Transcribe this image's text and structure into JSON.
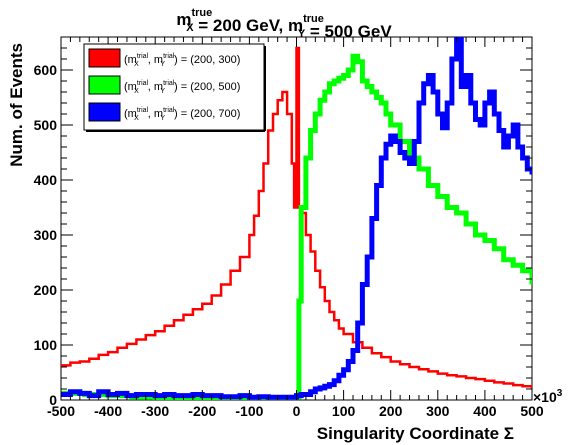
{
  "chart_data": {
    "type": "line",
    "title": {
      "parts": [
        {
          "text": "m",
          "sup": "true",
          "sub": "X"
        },
        {
          "text": " = 200 GeV, "
        },
        {
          "text": "m",
          "sup": "true",
          "sub": "Y"
        },
        {
          "text": " = 500 GeV"
        }
      ]
    },
    "xlabel": "Singularity Coordinate Σ",
    "ylabel": "Num. of Events",
    "x_multiplier_label": "×10",
    "x_multiplier_exp": "3",
    "xlim": [
      -500,
      500
    ],
    "ylim": [
      0,
      660
    ],
    "xticks": [
      -500,
      -400,
      -300,
      -200,
      -100,
      0,
      100,
      200,
      300,
      400,
      500
    ],
    "xtick_labels": [
      "-500",
      "-400",
      "-300",
      "-200",
      "-100",
      "0",
      "100",
      "200",
      "300",
      "400",
      "500"
    ],
    "yticks": [
      0,
      100,
      200,
      300,
      400,
      500,
      600
    ],
    "ytick_labels": [
      "0",
      "100",
      "200",
      "300",
      "400",
      "500",
      "600"
    ],
    "legend_position": "top-left",
    "series": [
      {
        "name": "(m_X^trial, m_Y^trial) = (200, 300)",
        "legend_prefix": "(m",
        "legend_sub1": "X",
        "legend_sup1": "trial",
        "legend_sub2": "Y",
        "legend_sup2": "trial",
        "legend_values": "= (200, 300)",
        "color": "#ff0000",
        "style": "line",
        "x": [
          -500,
          -480,
          -460,
          -440,
          -420,
          -400,
          -380,
          -360,
          -340,
          -320,
          -300,
          -280,
          -260,
          -240,
          -220,
          -200,
          -180,
          -160,
          -140,
          -120,
          -100,
          -90,
          -80,
          -70,
          -60,
          -50,
          -40,
          -30,
          -20,
          -10,
          -5,
          0,
          5,
          10,
          20,
          30,
          40,
          50,
          60,
          70,
          80,
          90,
          100,
          120,
          140,
          160,
          180,
          200,
          220,
          240,
          260,
          280,
          300,
          320,
          340,
          360,
          380,
          400,
          420,
          440,
          460,
          480,
          500
        ],
        "y": [
          63,
          68,
          70,
          75,
          82,
          87,
          95,
          102,
          110,
          118,
          125,
          135,
          145,
          155,
          165,
          175,
          190,
          210,
          235,
          260,
          300,
          335,
          380,
          430,
          490,
          520,
          545,
          560,
          520,
          430,
          350,
          640,
          350,
          340,
          300,
          270,
          235,
          205,
          180,
          160,
          145,
          130,
          120,
          105,
          95,
          85,
          78,
          70,
          65,
          60,
          56,
          52,
          48,
          45,
          43,
          40,
          38,
          35,
          32,
          30,
          27,
          25,
          20
        ]
      },
      {
        "name": "(m_X^trial, m_Y^trial) = (200, 500)",
        "legend_prefix": "(m",
        "legend_sub1": "X",
        "legend_sup1": "trial",
        "legend_sub2": "Y",
        "legend_sup2": "trial",
        "legend_values": "= (200, 500)",
        "color": "#00ff00",
        "style": "band",
        "x": [
          -500,
          -450,
          -400,
          -350,
          -300,
          -250,
          -200,
          -150,
          -100,
          -50,
          -10,
          0,
          5,
          10,
          20,
          30,
          40,
          50,
          60,
          70,
          80,
          90,
          100,
          110,
          120,
          130,
          140,
          150,
          160,
          170,
          180,
          190,
          200,
          220,
          240,
          260,
          280,
          300,
          320,
          340,
          360,
          380,
          400,
          420,
          440,
          460,
          480,
          500
        ],
        "y": [
          12,
          10,
          8,
          5,
          4,
          3,
          3,
          2,
          3,
          3,
          3,
          5,
          180,
          350,
          440,
          490,
          520,
          545,
          560,
          575,
          580,
          585,
          590,
          600,
          625,
          615,
          580,
          570,
          560,
          550,
          540,
          520,
          500,
          470,
          440,
          420,
          390,
          370,
          350,
          340,
          320,
          300,
          290,
          275,
          255,
          245,
          235,
          210
        ]
      },
      {
        "name": "(m_X^trial, m_Y^trial) = (200, 700)",
        "legend_prefix": "(m",
        "legend_sub1": "X",
        "legend_sup1": "trial",
        "legend_sub2": "Y",
        "legend_sup2": "trial",
        "legend_values": "= (200, 700)",
        "color": "#0000ff",
        "style": "band",
        "x": [
          -500,
          -480,
          -460,
          -440,
          -420,
          -400,
          -380,
          -360,
          -340,
          -320,
          -300,
          -280,
          -260,
          -240,
          -220,
          -200,
          -180,
          -160,
          -140,
          -120,
          -100,
          -80,
          -60,
          -40,
          -20,
          0,
          10,
          20,
          30,
          40,
          50,
          60,
          70,
          80,
          90,
          100,
          110,
          120,
          130,
          140,
          150,
          160,
          170,
          180,
          190,
          200,
          210,
          220,
          230,
          240,
          250,
          260,
          270,
          280,
          290,
          300,
          310,
          320,
          330,
          340,
          350,
          360,
          370,
          380,
          390,
          400,
          410,
          420,
          430,
          440,
          450,
          460,
          470,
          480,
          490,
          500
        ],
        "y": [
          10,
          15,
          12,
          8,
          15,
          10,
          12,
          8,
          10,
          10,
          8,
          10,
          8,
          8,
          10,
          8,
          8,
          6,
          6,
          8,
          5,
          6,
          5,
          5,
          5,
          8,
          10,
          10,
          15,
          20,
          22,
          25,
          28,
          35,
          45,
          55,
          70,
          90,
          140,
          210,
          260,
          330,
          390,
          440,
          465,
          480,
          470,
          450,
          440,
          430,
          470,
          540,
          575,
          590,
          560,
          520,
          495,
          540,
          620,
          660,
          570,
          590,
          540,
          510,
          500,
          540,
          560,
          520,
          490,
          460,
          480,
          500,
          460,
          440,
          420,
          410
        ]
      }
    ]
  }
}
